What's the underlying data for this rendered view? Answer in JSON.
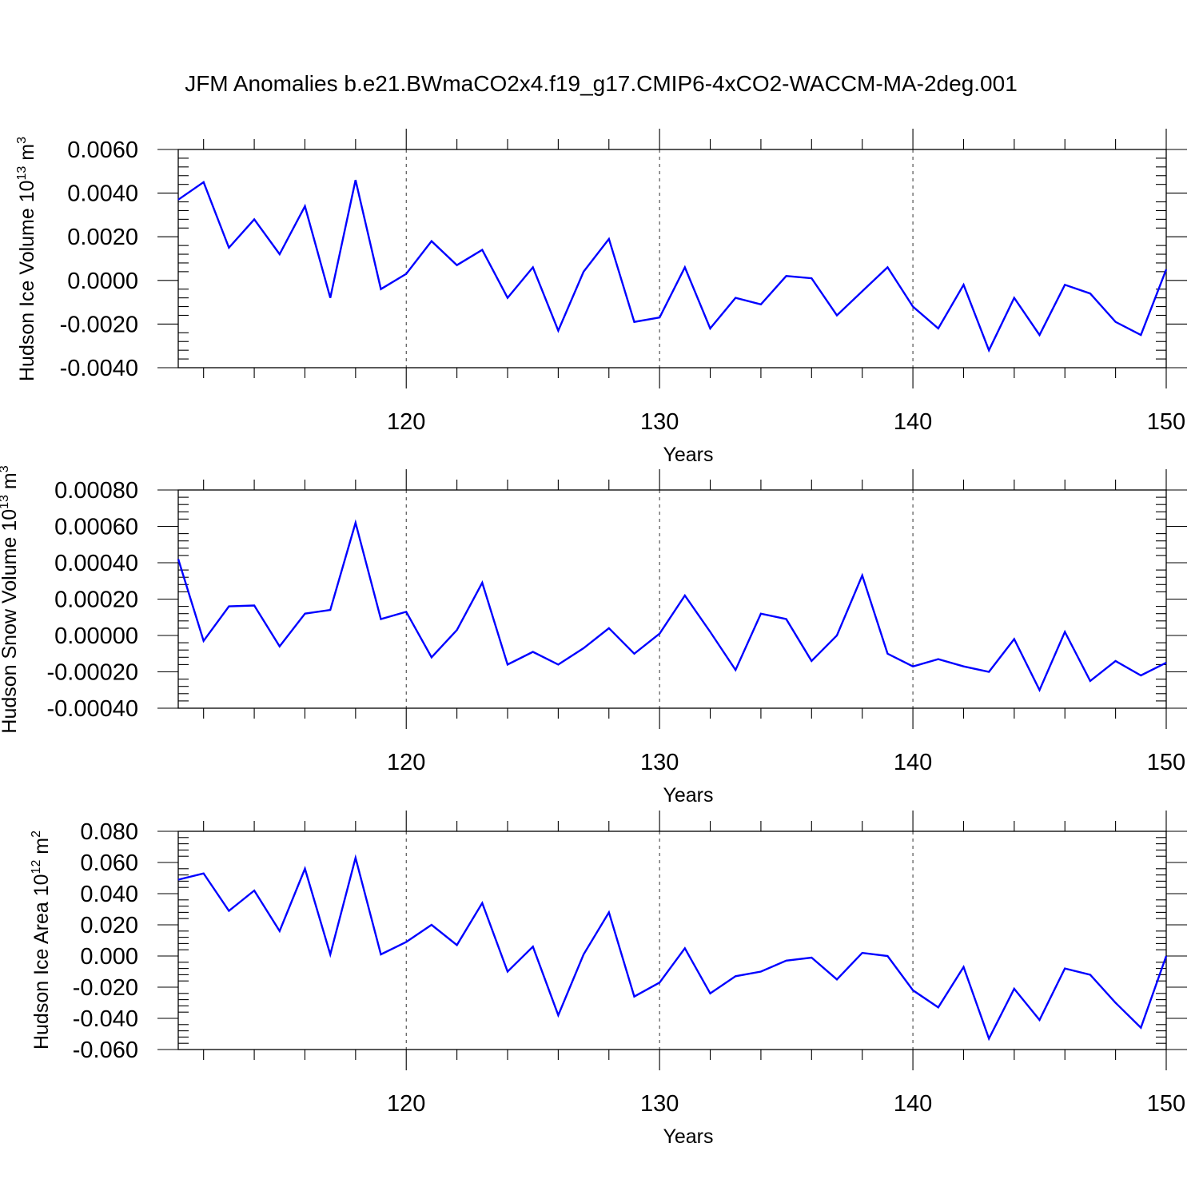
{
  "title": "JFM Anomalies b.e21.BWmaCO2x4.f19_g17.CMIP6-4xCO2-WACCM-MA-2deg.001",
  "colors": {
    "series": "#0000ff",
    "axis": "#000000"
  },
  "chart_data": [
    {
      "type": "line",
      "ylabel": {
        "text": "Hudson Ice Volume 10",
        "sup": "13",
        "unit": " m",
        "unit_sup": "3"
      },
      "xlabel": "Years",
      "xlim": [
        111,
        150
      ],
      "ylim": [
        -0.004,
        0.006
      ],
      "xticks": [
        120,
        130,
        140,
        150
      ],
      "xtick_labels": [
        "120",
        "130",
        "140",
        "150"
      ],
      "yticks": [
        -0.004,
        -0.002,
        0.0,
        0.002,
        0.004,
        0.006
      ],
      "ytick_labels": [
        "-0.0040",
        "-0.0020",
        "0.0000",
        "0.0020",
        "0.0040",
        "0.0060"
      ],
      "grid": "dashed vertical at major x ticks",
      "x": [
        111,
        112,
        113,
        114,
        115,
        116,
        117,
        118,
        119,
        120,
        121,
        122,
        123,
        124,
        125,
        126,
        127,
        128,
        129,
        130,
        131,
        132,
        133,
        134,
        135,
        136,
        137,
        138,
        139,
        140,
        141,
        142,
        143,
        144,
        145,
        146,
        147,
        148,
        149,
        150
      ],
      "values": [
        0.0037,
        0.0045,
        0.0015,
        0.0028,
        0.0012,
        0.0034,
        -0.0008,
        0.0046,
        -0.0004,
        0.0003,
        0.0018,
        0.0007,
        0.0014,
        -0.0008,
        0.0006,
        -0.0023,
        0.0004,
        0.0019,
        -0.0019,
        -0.0017,
        0.0006,
        -0.0022,
        -0.0008,
        -0.0011,
        0.0002,
        0.0001,
        -0.0016,
        -0.0005,
        0.0006,
        -0.0012,
        -0.0022,
        -0.0002,
        -0.0032,
        -0.0008,
        -0.0025,
        -0.0002,
        -0.0006,
        -0.0019,
        -0.0025,
        0.0005
      ]
    },
    {
      "type": "line",
      "ylabel": {
        "text": "Hudson Snow Volume 10",
        "sup": "13",
        "unit": " m",
        "unit_sup": "3"
      },
      "xlabel": "Years",
      "xlim": [
        111,
        150
      ],
      "ylim": [
        -0.0004,
        0.0008
      ],
      "xticks": [
        120,
        130,
        140,
        150
      ],
      "xtick_labels": [
        "120",
        "130",
        "140",
        "150"
      ],
      "yticks": [
        -0.0004,
        -0.0002,
        0.0,
        0.0002,
        0.0004,
        0.0006,
        0.0008
      ],
      "ytick_labels": [
        "-0.00040",
        "-0.00020",
        "0.00000",
        "0.00020",
        "0.00040",
        "0.00060",
        "0.00080"
      ],
      "grid": "dashed vertical at major x ticks",
      "x": [
        111,
        112,
        113,
        114,
        115,
        116,
        117,
        118,
        119,
        120,
        121,
        122,
        123,
        124,
        125,
        126,
        127,
        128,
        129,
        130,
        131,
        132,
        133,
        134,
        135,
        136,
        137,
        138,
        139,
        140,
        141,
        142,
        143,
        144,
        145,
        146,
        147,
        148,
        149,
        150
      ],
      "values": [
        0.00042,
        -3e-05,
        0.00016,
        0.000165,
        -6e-05,
        0.00012,
        0.00014,
        0.00062,
        9e-05,
        0.00013,
        -0.00012,
        3e-05,
        0.00029,
        -0.00016,
        -9e-05,
        -0.00016,
        -7e-05,
        4e-05,
        -0.0001,
        1e-05,
        0.00022,
        2e-05,
        -0.00019,
        0.00012,
        9e-05,
        -0.00014,
        0.0,
        0.00033,
        -0.0001,
        -0.00017,
        -0.00013,
        -0.00017,
        -0.0002,
        -2e-05,
        -0.0003,
        2e-05,
        -0.00025,
        -0.00014,
        -0.00022,
        -0.00015
      ]
    },
    {
      "type": "line",
      "ylabel": {
        "text": "Hudson Ice Area 10",
        "sup": "12",
        "unit": " m",
        "unit_sup": "2"
      },
      "xlabel": "Years",
      "xlim": [
        111,
        150
      ],
      "ylim": [
        -0.06,
        0.08
      ],
      "xticks": [
        120,
        130,
        140,
        150
      ],
      "xtick_labels": [
        "120",
        "130",
        "140",
        "150"
      ],
      "yticks": [
        -0.06,
        -0.04,
        -0.02,
        0.0,
        0.02,
        0.04,
        0.06,
        0.08
      ],
      "ytick_labels": [
        "-0.060",
        "-0.040",
        "-0.020",
        "0.000",
        "0.020",
        "0.040",
        "0.060",
        "0.080"
      ],
      "grid": "dashed vertical at major x ticks",
      "x": [
        111,
        112,
        113,
        114,
        115,
        116,
        117,
        118,
        119,
        120,
        121,
        122,
        123,
        124,
        125,
        126,
        127,
        128,
        129,
        130,
        131,
        132,
        133,
        134,
        135,
        136,
        137,
        138,
        139,
        140,
        141,
        142,
        143,
        144,
        145,
        146,
        147,
        148,
        149,
        150
      ],
      "values": [
        0.049,
        0.053,
        0.029,
        0.042,
        0.016,
        0.056,
        0.001,
        0.063,
        0.001,
        0.009,
        0.02,
        0.007,
        0.034,
        -0.01,
        0.006,
        -0.038,
        0.001,
        0.028,
        -0.026,
        -0.017,
        0.005,
        -0.024,
        -0.013,
        -0.01,
        -0.003,
        -0.001,
        -0.015,
        0.002,
        0.0,
        -0.022,
        -0.033,
        -0.007,
        -0.053,
        -0.021,
        -0.041,
        -0.008,
        -0.012,
        -0.03,
        -0.046,
        0.0
      ]
    }
  ]
}
